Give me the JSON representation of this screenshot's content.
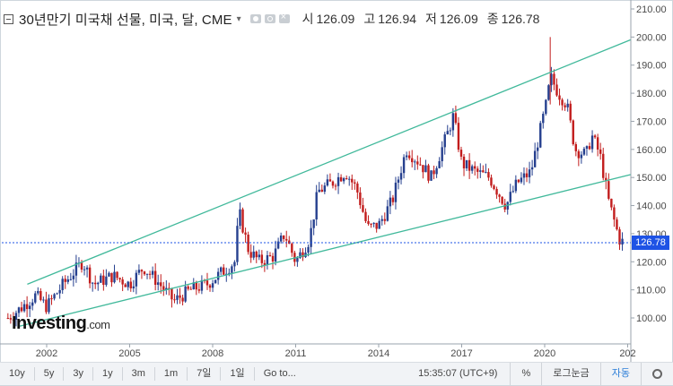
{
  "header": {
    "title": "30년만기 미국채 선물, 미국, 달, CME",
    "caret": "▾",
    "open_label": "시",
    "open_value": "126.09",
    "high_label": "고",
    "high_value": "126.94",
    "low_label": "저",
    "low_value": "126.09",
    "close_label": "종",
    "close_value": "126.78"
  },
  "logo": {
    "text": "Investing",
    "suffix": ".com"
  },
  "price_flag": "126.78",
  "chart_data": {
    "type": "candlestick",
    "y_ticks": [
      "210.00",
      "200.00",
      "190.00",
      "180.00",
      "170.00",
      "160.00",
      "150.00",
      "140.00",
      "130.00",
      "120.00",
      "110.00",
      "100.00"
    ],
    "x_ticks": [
      "2002",
      "2005",
      "2008",
      "2011",
      "2014",
      "2017",
      "2020",
      "202"
    ],
    "ylim": [
      95,
      212
    ],
    "xlim": [
      2000.5,
      2023.2
    ],
    "current_price": 126.78,
    "colors": {
      "up": "#26408f",
      "down": "#c21d1d",
      "trend": "#41b99b",
      "price_line": "#1e53e5"
    },
    "anchors": [
      [
        2000.6,
        100
      ],
      [
        2001.0,
        103
      ],
      [
        2001.6,
        108
      ],
      [
        2002.0,
        104
      ],
      [
        2002.6,
        112
      ],
      [
        2003.3,
        120
      ],
      [
        2003.7,
        112
      ],
      [
        2004.4,
        115
      ],
      [
        2005.0,
        112
      ],
      [
        2005.5,
        118
      ],
      [
        2006.0,
        113
      ],
      [
        2006.6,
        106
      ],
      [
        2007.2,
        110
      ],
      [
        2007.8,
        112
      ],
      [
        2008.3,
        116
      ],
      [
        2008.8,
        120
      ],
      [
        2008.95,
        138
      ],
      [
        2009.3,
        124
      ],
      [
        2009.7,
        120
      ],
      [
        2010.2,
        122
      ],
      [
        2010.6,
        130
      ],
      [
        2011.0,
        120
      ],
      [
        2011.5,
        128
      ],
      [
        2011.8,
        145
      ],
      [
        2012.3,
        148
      ],
      [
        2012.8,
        152
      ],
      [
        2013.2,
        146
      ],
      [
        2013.6,
        132
      ],
      [
        2014.0,
        133
      ],
      [
        2014.5,
        142
      ],
      [
        2015.0,
        160
      ],
      [
        2015.5,
        155
      ],
      [
        2015.9,
        150
      ],
      [
        2016.5,
        166
      ],
      [
        2016.7,
        172
      ],
      [
        2017.0,
        155
      ],
      [
        2017.5,
        152
      ],
      [
        2018.0,
        150
      ],
      [
        2018.6,
        140
      ],
      [
        2019.0,
        148
      ],
      [
        2019.5,
        152
      ],
      [
        2019.8,
        165
      ],
      [
        2020.1,
        178
      ],
      [
        2020.2,
        186
      ],
      [
        2020.5,
        180
      ],
      [
        2020.8,
        176
      ],
      [
        2021.1,
        160
      ],
      [
        2021.5,
        158
      ],
      [
        2021.7,
        165
      ],
      [
        2022.0,
        158
      ],
      [
        2022.3,
        142
      ],
      [
        2022.5,
        135
      ],
      [
        2022.7,
        128
      ],
      [
        2022.85,
        126.78
      ]
    ],
    "spike": {
      "x": 2020.2,
      "high": 200
    },
    "trend_lines": [
      {
        "from": [
          2001.3,
          112
        ],
        "to": [
          2023.1,
          199
        ]
      },
      {
        "from": [
          2001.0,
          97
        ],
        "to": [
          2023.1,
          151
        ]
      }
    ]
  },
  "toolbar": {
    "ranges": [
      "10y",
      "5y",
      "3y",
      "1y",
      "3m",
      "1m",
      "7일",
      "1일"
    ],
    "goto": "Go to...",
    "time": "15:35:07 (UTC+9)",
    "percent": "%",
    "log": "로그눈금",
    "auto": "자동"
  }
}
